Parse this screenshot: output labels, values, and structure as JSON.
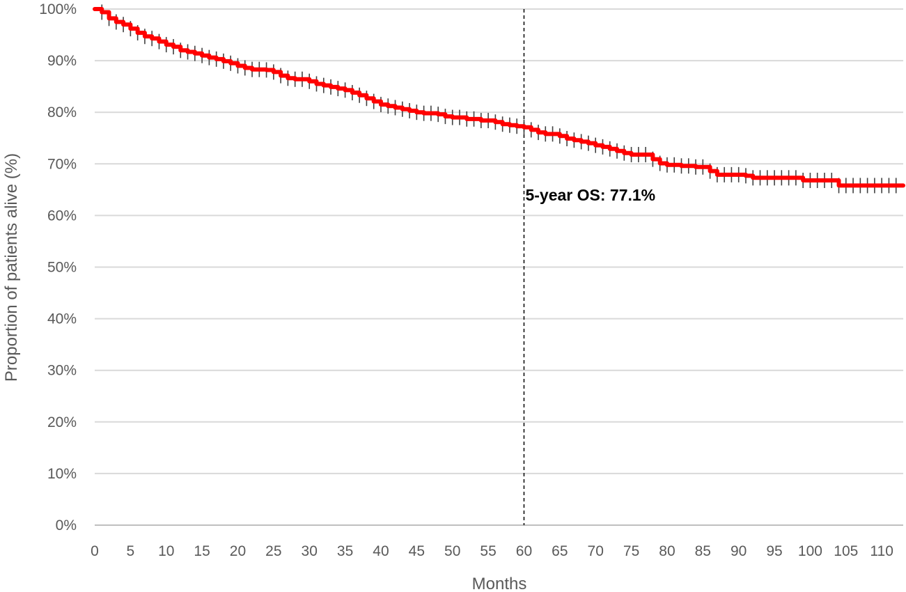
{
  "chart_data": {
    "type": "line",
    "title": "",
    "xlabel": "Months",
    "ylabel": "Proportion of patients alive (%)",
    "xlim": [
      0,
      113
    ],
    "ylim": [
      0,
      100
    ],
    "x_ticks": [
      0,
      5,
      10,
      15,
      20,
      25,
      30,
      35,
      40,
      45,
      50,
      55,
      60,
      65,
      70,
      75,
      80,
      85,
      90,
      95,
      100,
      105,
      110
    ],
    "x_tick_labels": [
      "0",
      "5",
      "10",
      "15",
      "20",
      "25",
      "30",
      "35",
      "40",
      "45",
      "50",
      "55",
      "60",
      "65",
      "70",
      "75",
      "80",
      "85",
      "90",
      "95",
      "100",
      "105",
      "110"
    ],
    "y_ticks": [
      0,
      10,
      20,
      30,
      40,
      50,
      60,
      70,
      80,
      90,
      100
    ],
    "y_tick_labels": [
      "0%",
      "10%",
      "20%",
      "30%",
      "40%",
      "50%",
      "60%",
      "70%",
      "80%",
      "90%",
      "100%"
    ],
    "grid": {
      "horizontal": true,
      "vertical": false
    },
    "series": [
      {
        "color": "#ff0000",
        "censor_color": "#404040",
        "step": true,
        "points": [
          [
            0,
            100
          ],
          [
            1,
            99.4
          ],
          [
            2,
            98.2
          ],
          [
            3,
            97.5
          ],
          [
            4,
            97.0
          ],
          [
            5,
            96.2
          ],
          [
            6,
            95.4
          ],
          [
            7,
            94.7
          ],
          [
            8,
            94.3
          ],
          [
            9,
            93.7
          ],
          [
            10,
            93.1
          ],
          [
            11,
            92.7
          ],
          [
            12,
            92.0
          ],
          [
            13,
            91.7
          ],
          [
            14,
            91.4
          ],
          [
            15,
            91.0
          ],
          [
            16,
            90.6
          ],
          [
            17,
            90.3
          ],
          [
            18,
            89.9
          ],
          [
            19,
            89.5
          ],
          [
            20,
            89.0
          ],
          [
            21,
            88.6
          ],
          [
            22,
            88.3
          ],
          [
            24,
            88.2
          ],
          [
            25,
            87.8
          ],
          [
            26,
            87.1
          ],
          [
            27,
            86.6
          ],
          [
            28,
            86.4
          ],
          [
            30,
            86.0
          ],
          [
            31,
            85.5
          ],
          [
            32,
            85.2
          ],
          [
            33,
            84.9
          ],
          [
            34,
            84.6
          ],
          [
            35,
            84.3
          ],
          [
            36,
            83.8
          ],
          [
            37,
            83.3
          ],
          [
            38,
            82.7
          ],
          [
            39,
            82.1
          ],
          [
            40,
            81.5
          ],
          [
            41,
            81.2
          ],
          [
            42,
            80.9
          ],
          [
            43,
            80.6
          ],
          [
            44,
            80.3
          ],
          [
            45,
            80.0
          ],
          [
            46,
            79.8
          ],
          [
            48,
            79.6
          ],
          [
            49,
            79.2
          ],
          [
            50,
            79.0
          ],
          [
            52,
            78.7
          ],
          [
            54,
            78.4
          ],
          [
            56,
            78.1
          ],
          [
            57,
            77.7
          ],
          [
            58,
            77.5
          ],
          [
            59,
            77.3
          ],
          [
            60,
            77.1
          ],
          [
            61,
            76.6
          ],
          [
            62,
            76.1
          ],
          [
            63,
            75.8
          ],
          [
            65,
            75.4
          ],
          [
            66,
            74.9
          ],
          [
            67,
            74.6
          ],
          [
            68,
            74.3
          ],
          [
            69,
            74.0
          ],
          [
            70,
            73.6
          ],
          [
            71,
            73.3
          ],
          [
            72,
            72.9
          ],
          [
            73,
            72.5
          ],
          [
            74,
            72.1
          ],
          [
            75,
            71.8
          ],
          [
            78,
            70.9
          ],
          [
            79,
            70.1
          ],
          [
            80,
            69.8
          ],
          [
            82,
            69.6
          ],
          [
            84,
            69.4
          ],
          [
            86,
            68.6
          ],
          [
            87,
            67.9
          ],
          [
            91,
            67.7
          ],
          [
            92,
            67.3
          ],
          [
            99,
            66.8
          ],
          [
            104,
            65.8
          ],
          [
            113,
            65.8
          ]
        ],
        "censor_marks": [
          1,
          2,
          3,
          4,
          5,
          6,
          7,
          8,
          9,
          10,
          11,
          12,
          13,
          14,
          15,
          16,
          17,
          18,
          19,
          20,
          21,
          22,
          23,
          24,
          25,
          26,
          27,
          28,
          29,
          30,
          31,
          32,
          33,
          34,
          35,
          36,
          37,
          38,
          39,
          40,
          41,
          42,
          43,
          44,
          45,
          46,
          47,
          48,
          49,
          50,
          51,
          52,
          53,
          54,
          55,
          56,
          57,
          58,
          59,
          60,
          61,
          62,
          63,
          64,
          65,
          66,
          67,
          68,
          69,
          70,
          71,
          72,
          73,
          74,
          75,
          76,
          77,
          78,
          79,
          80,
          81,
          82,
          83,
          84,
          85,
          86,
          87,
          88,
          89,
          90,
          91,
          92,
          93,
          94,
          95,
          96,
          97,
          98,
          99,
          100,
          101,
          102,
          103,
          104,
          105,
          106,
          107,
          108,
          109,
          110,
          111,
          112
        ]
      }
    ],
    "reference_line": {
      "x": 60,
      "style": "dashed",
      "color": "#000000"
    },
    "annotations": [
      {
        "text": "5-year OS: 77.1%",
        "x": 60,
        "y": 64
      }
    ]
  }
}
